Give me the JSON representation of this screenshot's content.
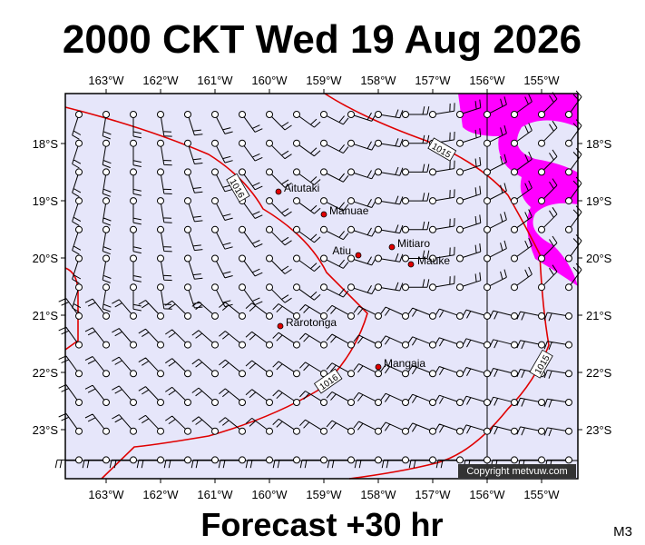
{
  "title": "2000 CKT Wed 19 Aug 2026",
  "footer": "Forecast +30 hr",
  "model": "M3",
  "copyright": "Copyright metvuw.com",
  "lon_labels": [
    "163°W",
    "162°W",
    "161°W",
    "160°W",
    "159°W",
    "158°W",
    "157°W",
    "156°W",
    "155°W"
  ],
  "lat_labels": [
    "18°S",
    "19°S",
    "20°S",
    "21°S",
    "22°S",
    "23°S"
  ],
  "places": [
    {
      "label": "Aitutaki"
    },
    {
      "label": "Manuae"
    },
    {
      "label": "Atiu"
    },
    {
      "label": "Mitiaro"
    },
    {
      "label": "Mauke"
    },
    {
      "label": "Rarotonga"
    },
    {
      "label": "Mangaia"
    }
  ],
  "isobar_labels": [
    "1016",
    "1015",
    "1016",
    "1015"
  ]
}
